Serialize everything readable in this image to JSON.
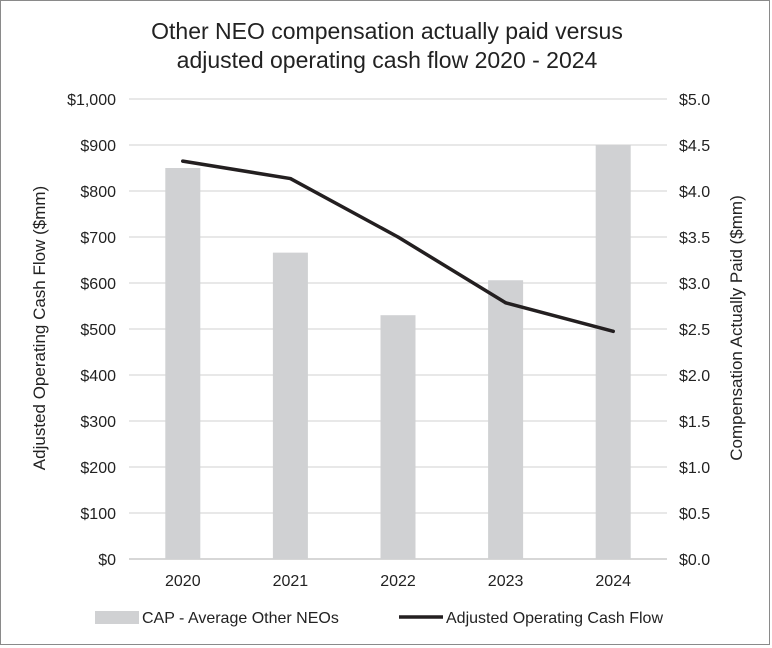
{
  "chart_data": {
    "type": "bar",
    "title": "Other NEO compensation actually paid versus adjusted operating cash flow 2020 - 2024",
    "title_lines": [
      "Other NEO compensation actually paid versus",
      "adjusted operating cash flow 2020 - 2024"
    ],
    "categories": [
      "2020",
      "2021",
      "2022",
      "2023",
      "2024"
    ],
    "series": [
      {
        "name": "CAP - Average Other NEOs",
        "kind": "bar",
        "axis": "right",
        "values": [
          4.25,
          3.33,
          2.65,
          3.03,
          4.5
        ],
        "color": "#d0d1d3"
      },
      {
        "name": "Adjusted Operating Cash Flow",
        "kind": "line",
        "axis": "left",
        "values": [
          865,
          827,
          700,
          557,
          495
        ],
        "color": "#231f20"
      }
    ],
    "y_left": {
      "label": "Adjusted Operating Cash Flow ($mm)",
      "range": [
        0,
        1000
      ],
      "ticks": [
        "$0",
        "$100",
        "$200",
        "$300",
        "$400",
        "$500",
        "$600",
        "$700",
        "$800",
        "$900",
        "$1,000"
      ]
    },
    "y_right": {
      "label": "Compensation Actually Paid ($mm)",
      "range": [
        0,
        5
      ],
      "ticks": [
        "$0.0",
        "$0.5",
        "$1.0",
        "$1.5",
        "$2.0",
        "$2.5",
        "$3.0",
        "$3.5",
        "$4.0",
        "$4.5",
        "$5.0"
      ]
    },
    "grid": true,
    "legend_position": "bottom",
    "colors": {
      "bar": "#d0d1d3",
      "line": "#231f20",
      "grid": "#d9d9d9",
      "axis": "#bfbfbf"
    }
  }
}
